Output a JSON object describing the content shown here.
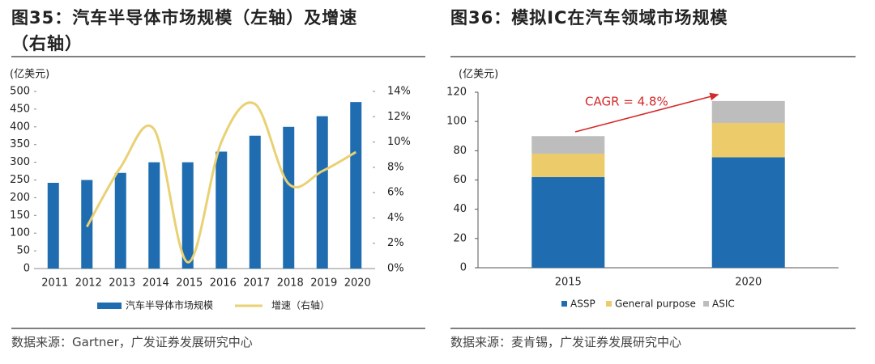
{
  "chart_data": [
    {
      "type": "combo",
      "title": "图35：汽车半导体市场规模（左轴）及增速（右轴）",
      "y_label": "(亿美元)",
      "categories": [
        "2011",
        "2012",
        "2013",
        "2014",
        "2015",
        "2016",
        "2017",
        "2018",
        "2019",
        "2020"
      ],
      "series": [
        {
          "name": "汽车半导体市场规模",
          "kind": "bar",
          "color": "#1f6db0",
          "values": [
            242,
            250,
            270,
            300,
            300,
            330,
            375,
            400,
            430,
            470
          ]
        },
        {
          "name": "增速（右轴）",
          "kind": "line",
          "axis": "y2",
          "color": "#e9d174",
          "values": [
            null,
            3.3,
            8.0,
            11.0,
            0.5,
            10.0,
            13.0,
            6.7,
            7.7,
            9.2
          ]
        }
      ],
      "ylim": [
        0,
        500
      ],
      "yticks": [
        0,
        50,
        100,
        150,
        200,
        250,
        300,
        350,
        400,
        450,
        500
      ],
      "y2lim": [
        0,
        14
      ],
      "y2ticks": [
        {
          "value": 0,
          "label": "0%"
        },
        {
          "value": 2,
          "label": "2%"
        },
        {
          "value": 4,
          "label": "4%"
        },
        {
          "value": 6,
          "label": "6%"
        },
        {
          "value": 8,
          "label": "8%"
        },
        {
          "value": 10,
          "label": "10%"
        },
        {
          "value": 12,
          "label": "12%"
        },
        {
          "value": 14,
          "label": "14%"
        }
      ],
      "grid": false,
      "source": "数据来源：Gartner，广发证券发展研究中心"
    },
    {
      "type": "stacked_bar",
      "title": "图36：模拟IC在汽车领域市场规模",
      "y_label": "(亿美元)",
      "categories": [
        "2015",
        "2020"
      ],
      "series": [
        {
          "name": "ASSP",
          "color": "#1f6db0",
          "values": [
            62,
            75.5
          ]
        },
        {
          "name": "General purpose",
          "color": "#ebcb6a",
          "values": [
            16,
            23.5
          ]
        },
        {
          "name": "ASIC",
          "color": "#bdbdbd",
          "values": [
            12,
            15
          ]
        }
      ],
      "ylim": [
        0,
        120
      ],
      "yticks": [
        0,
        20,
        40,
        60,
        80,
        100,
        120
      ],
      "grid": false,
      "annotation": "CAGR = 4.8%",
      "source": "数据来源：麦肯锡，广发证券发展研究中心"
    }
  ]
}
